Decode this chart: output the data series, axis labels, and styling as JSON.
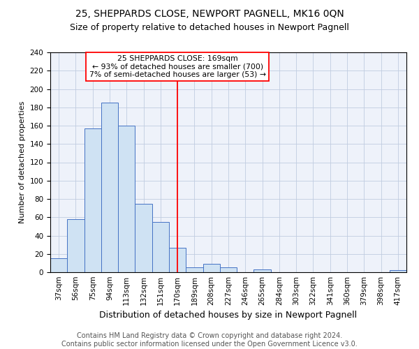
{
  "title1": "25, SHEPPARDS CLOSE, NEWPORT PAGNELL, MK16 0QN",
  "title2": "Size of property relative to detached houses in Newport Pagnell",
  "xlabel": "Distribution of detached houses by size in Newport Pagnell",
  "ylabel": "Number of detached properties",
  "footnote": "Contains HM Land Registry data © Crown copyright and database right 2024.\nContains public sector information licensed under the Open Government Licence v3.0.",
  "categories": [
    "37sqm",
    "56sqm",
    "75sqm",
    "94sqm",
    "113sqm",
    "132sqm",
    "151sqm",
    "170sqm",
    "189sqm",
    "208sqm",
    "227sqm",
    "246sqm",
    "265sqm",
    "284sqm",
    "303sqm",
    "322sqm",
    "341sqm",
    "360sqm",
    "379sqm",
    "398sqm",
    "417sqm"
  ],
  "values": [
    15,
    58,
    157,
    185,
    160,
    75,
    55,
    27,
    5,
    9,
    5,
    0,
    3,
    0,
    0,
    0,
    0,
    0,
    0,
    0,
    2
  ],
  "bar_color": "#cfe2f3",
  "bar_edge_color": "#4472c4",
  "red_line_x": 7,
  "annotation_box_text": "25 SHEPPARDS CLOSE: 169sqm\n← 93% of detached houses are smaller (700)\n7% of semi-detached houses are larger (53) →",
  "ylim": [
    0,
    240
  ],
  "yticks": [
    0,
    20,
    40,
    60,
    80,
    100,
    120,
    140,
    160,
    180,
    200,
    220,
    240
  ],
  "background_color": "#eef2fa",
  "grid_color": "#c0cce0",
  "title1_fontsize": 10,
  "title2_fontsize": 9,
  "xlabel_fontsize": 9,
  "ylabel_fontsize": 8,
  "footnote_fontsize": 7,
  "tick_fontsize": 7.5
}
